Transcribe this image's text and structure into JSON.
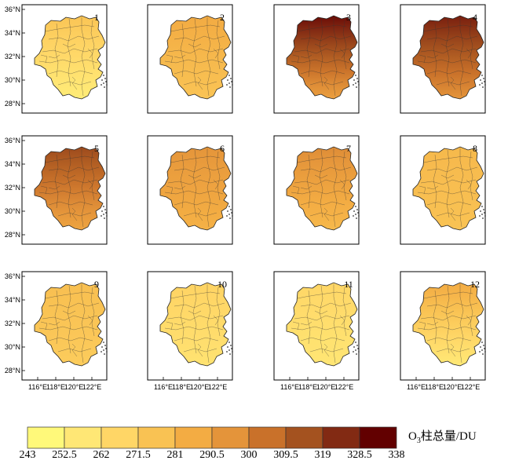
{
  "map_figure": {
    "lat_ticks": [
      "36°N",
      "34°N",
      "32°N",
      "30°N",
      "28°N"
    ],
    "lon_ticks": [
      "116°E",
      "118°E",
      "120°E",
      "122°E"
    ],
    "panels": [
      {
        "label": "1",
        "north": 0.32,
        "south": 0.08
      },
      {
        "label": "2",
        "north": 0.45,
        "south": 0.32
      },
      {
        "label": "3",
        "north": 0.97,
        "south": 0.5
      },
      {
        "label": "4",
        "north": 0.92,
        "south": 0.55
      },
      {
        "label": "5",
        "north": 0.8,
        "south": 0.48
      },
      {
        "label": "6",
        "north": 0.55,
        "south": 0.42
      },
      {
        "label": "7",
        "north": 0.58,
        "south": 0.38
      },
      {
        "label": "8",
        "north": 0.38,
        "south": 0.33
      },
      {
        "label": "9",
        "north": 0.35,
        "south": 0.28
      },
      {
        "label": "10",
        "north": 0.24,
        "south": 0.14
      },
      {
        "label": "11",
        "north": 0.22,
        "south": 0.12
      },
      {
        "label": "12",
        "north": 0.45,
        "south": 0.1
      }
    ]
  },
  "legend": {
    "title_prefix": "O",
    "title_sub": "3",
    "title_suffix": "柱总量/DU",
    "ticks": [
      "243",
      "252.5",
      "262",
      "271.5",
      "281",
      "290.5",
      "300",
      "309.5",
      "319",
      "328.5",
      "338"
    ],
    "colors": [
      "#FFF97A",
      "#FFE775",
      "#FFD666",
      "#F9C253",
      "#F3AC43",
      "#E4943A",
      "#C9712A",
      "#A4521F",
      "#822A13",
      "#620000"
    ]
  }
}
